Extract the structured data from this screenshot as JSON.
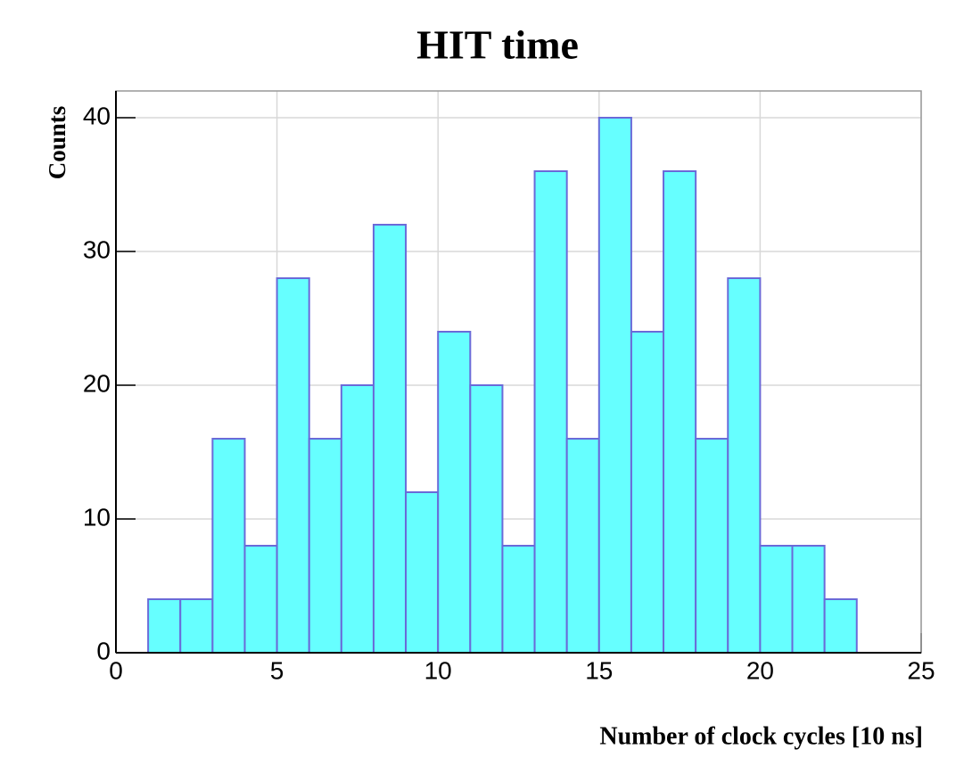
{
  "chart_data": {
    "type": "histogram",
    "title": "HIT time",
    "x_label": "Number of clock cycles [10 ns]",
    "y_label": "Counts",
    "bins": [
      0,
      1,
      2,
      3,
      4,
      5,
      6,
      7,
      8,
      9,
      10,
      11,
      12,
      13,
      14,
      15,
      16,
      17,
      18,
      19,
      20,
      21,
      22,
      23,
      24,
      25
    ],
    "values": [
      0,
      4,
      4,
      16,
      8,
      28,
      16,
      20,
      32,
      12,
      24,
      20,
      8,
      36,
      16,
      40,
      24,
      36,
      16,
      28,
      8,
      8,
      4,
      0,
      0
    ],
    "color": "#66ffff",
    "edge_color": "#6a6ad8",
    "xlim": [
      0,
      25
    ],
    "xticks": [
      0,
      5,
      10,
      15,
      20,
      25
    ],
    "ylim": [
      0,
      42
    ],
    "yticks": [
      0,
      10,
      20,
      30,
      40
    ],
    "grid": true
  }
}
